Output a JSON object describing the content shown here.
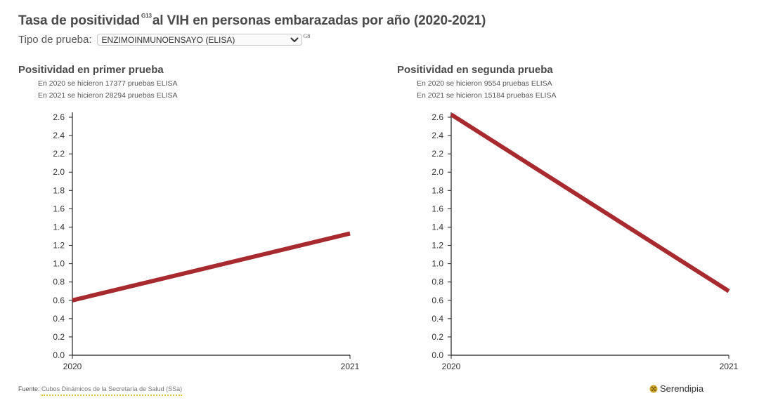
{
  "header": {
    "title_part1": "Tasa de positividad",
    "title_ref": "G13",
    "title_part2": "al VIH en personas embarazadas por año (2020-2021)"
  },
  "filter": {
    "label": "Tipo de prueba:",
    "selected": "ENZIMOINMUNOENSAYO (ELISA)",
    "note_ref": "G8"
  },
  "panels": [
    {
      "title": "Positividad en primer prueba",
      "notes": [
        "En 2020 se hicieron 17377 pruebas ELISA",
        "En 2021 se hicieron 28294 pruebas ELISA"
      ]
    },
    {
      "title": "Positividad en segunda prueba",
      "notes": [
        "En 2020 se hicieron 9554 pruebas ELISA",
        "En 2021 se hicieron 15184 pruebas ELISA"
      ]
    }
  ],
  "chart_data": [
    {
      "type": "line",
      "title": "Positividad en primer prueba",
      "x": [
        "2020",
        "2021"
      ],
      "series": [
        {
          "values": [
            0.6,
            1.33
          ]
        }
      ],
      "ylim": [
        0,
        2.6
      ],
      "yticks": [
        "0.0",
        "0.2",
        "0.4",
        "0.6",
        "0.8",
        "1.0",
        "1.2",
        "1.4",
        "1.6",
        "1.8",
        "2.0",
        "2.2",
        "2.4",
        "2.6"
      ],
      "grid": false,
      "color": "#a8292e"
    },
    {
      "type": "line",
      "title": "Positividad en segunda prueba",
      "x": [
        "2020",
        "2021"
      ],
      "series": [
        {
          "values": [
            2.63,
            0.7
          ]
        }
      ],
      "ylim": [
        0,
        2.6
      ],
      "yticks": [
        "0.0",
        "0.2",
        "0.4",
        "0.6",
        "0.8",
        "1.0",
        "1.2",
        "1.4",
        "1.6",
        "1.8",
        "2.0",
        "2.2",
        "2.4",
        "2.6"
      ],
      "grid": false,
      "color": "#a8292e"
    }
  ],
  "footer": {
    "source_label": "Fuente:",
    "source_link": "Cubos Dinámicos de la Secretaría de Salud (SSa)",
    "brand": "Serendipia",
    "brand_color": "#c9a227"
  }
}
